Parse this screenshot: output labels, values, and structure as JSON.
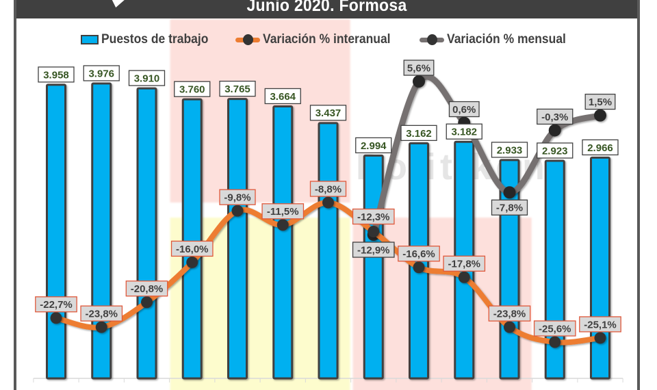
{
  "title": "Junio 2020. Formosa",
  "legend": [
    {
      "label": "Puestos de trabajo",
      "type": "bar",
      "color": "#00b0f0"
    },
    {
      "label": "Variación % interanual",
      "type": "line",
      "color": "#ed7d31"
    },
    {
      "label": "Variación % mensual",
      "type": "line",
      "color": "#767171"
    }
  ],
  "watermark": "Politikon",
  "colors": {
    "bar": "#00b0f0",
    "bar_border": "#404040",
    "interanual_line": "#ed7d31",
    "mensual_line": "#767171",
    "marker": "#333333",
    "bar_label_text": "#375623",
    "pct_label_text": "#404040",
    "pct_label_bg": "#d9d9d9",
    "shade_pink": "#fde0dc",
    "shade_yellow": "#fdfccd",
    "title_bg": "#404040"
  },
  "chart_data": {
    "type": "bar+line",
    "title": "Junio 2020. Formosa",
    "xlabel": "",
    "ylabel": "",
    "categories": [
      "",
      "",
      "",
      "",
      "",
      "",
      "",
      "",
      "",
      "",
      "",
      "",
      ""
    ],
    "grid": false,
    "legend_position": "top",
    "series": [
      {
        "name": "Puestos de trabajo",
        "type": "bar",
        "values": [
          3958,
          3976,
          3910,
          3760,
          3765,
          3664,
          3437,
          2994,
          3162,
          3182,
          2933,
          2923,
          2966
        ],
        "labels": [
          "3.958",
          "3.976",
          "3.910",
          "3.760",
          "3.765",
          "3.664",
          "3.437",
          "2.994",
          "3.162",
          "3.182",
          "2.933",
          "2.923",
          "2.966"
        ]
      },
      {
        "name": "Variación % interanual",
        "type": "line",
        "values": [
          -22.7,
          -23.8,
          -20.8,
          -16.0,
          -9.8,
          -11.5,
          -8.8,
          -12.3,
          -16.6,
          -17.8,
          -23.8,
          -25.6,
          -25.1
        ],
        "labels": [
          "-22,7%",
          "-23,8%",
          "-20,8%",
          "-16,0%",
          "-9,8%",
          "-11,5%",
          "-8,8%",
          "-12,3%",
          "-16,6%",
          "-17,8%",
          "-23,8%",
          "-25,6%",
          "-25,1%"
        ]
      },
      {
        "name": "Variación % mensual",
        "type": "line",
        "start_index": 7,
        "values": [
          -12.9,
          5.6,
          0.6,
          -7.8,
          -0.3,
          1.5
        ],
        "labels": [
          "-12,9%",
          "5,6%",
          "0,6%",
          "-7,8%",
          "-0,3%",
          "1,5%"
        ]
      }
    ],
    "shaded_regions": [
      {
        "color": "pink",
        "from_index": 3,
        "to_index": 6,
        "band": "upper"
      },
      {
        "color": "yellow",
        "from_index": 3,
        "to_index": 6,
        "band": "lower"
      },
      {
        "color": "pink",
        "from_index": 7,
        "to_index": 10,
        "band": "lower"
      }
    ]
  }
}
